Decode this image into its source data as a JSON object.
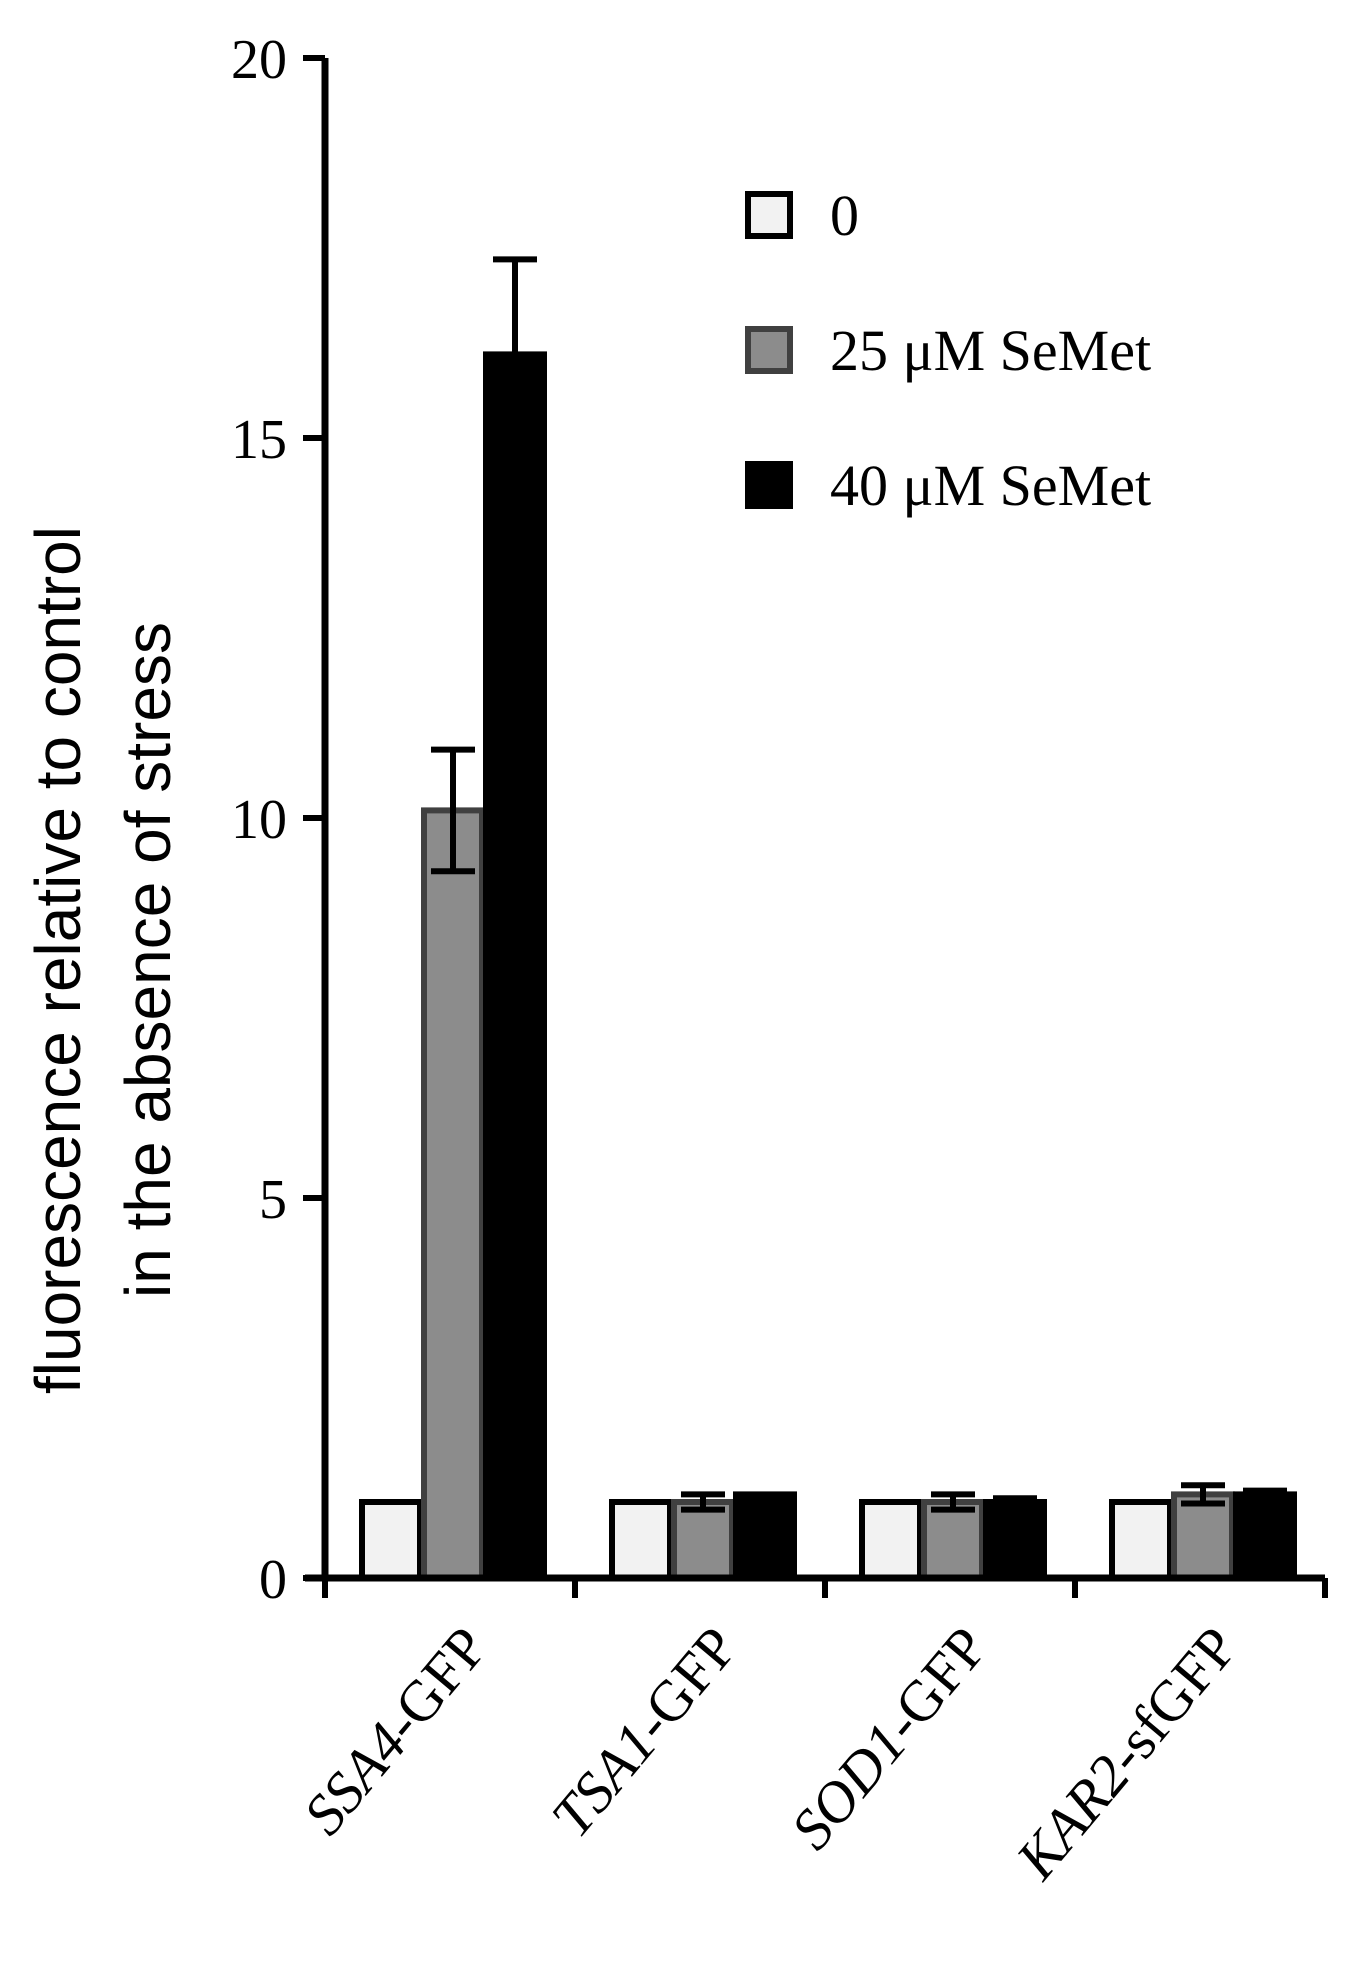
{
  "chart_data": {
    "type": "bar",
    "title": "",
    "xlabel": "",
    "ylabel_lines": [
      "fluorescence relative to control",
      "in the absence of stress"
    ],
    "ylim": [
      0,
      20
    ],
    "yticks": [
      "0",
      "5",
      "10",
      "15",
      "20"
    ],
    "categories": [
      {
        "italic": "SSA4",
        "rest": "-GFP"
      },
      {
        "italic": "TSA1",
        "rest": "-GFP"
      },
      {
        "italic": "SOD1",
        "rest": "-GFP"
      },
      {
        "italic": "KAR2",
        "rest": "-sfGFP"
      }
    ],
    "series": [
      {
        "name": "0",
        "color": "#f2f2f2",
        "stroke": "#000000",
        "values": [
          1.0,
          1.0,
          1.0,
          1.0
        ],
        "errors": [
          0,
          0,
          0,
          0
        ]
      },
      {
        "name": "25 μM SeMet",
        "color": "#8c8c8c",
        "stroke": "#404040",
        "values": [
          10.1,
          1.0,
          1.0,
          1.1
        ],
        "errors": [
          0.8,
          0.1,
          0.1,
          0.12
        ]
      },
      {
        "name": "40 μM SeMet",
        "color": "#000000",
        "stroke": "#000000",
        "values": [
          16.1,
          1.1,
          1.0,
          1.1
        ],
        "errors": [
          1.25,
          0.0,
          0.05,
          0.05
        ]
      }
    ],
    "legend_position": "top-right",
    "grid": false
  }
}
